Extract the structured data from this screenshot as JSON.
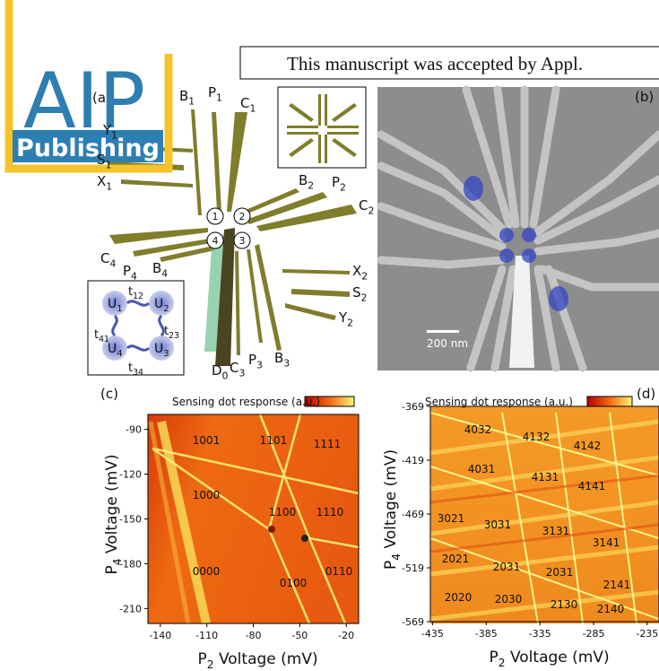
{
  "logo": {
    "name": "AIP",
    "sub": "Publishing"
  },
  "header": "This manuscript was accepted by Appl.",
  "panel_a": {
    "label": "(a)",
    "gates": [
      [
        "B",
        "1"
      ],
      [
        "P",
        "1"
      ],
      [
        "C",
        "1"
      ],
      [
        "Y",
        "1"
      ],
      [
        "S",
        "1"
      ],
      [
        "X",
        "1"
      ],
      [
        "B",
        "2"
      ],
      [
        "P",
        "2"
      ],
      [
        "C",
        "2"
      ],
      [
        "C",
        "4"
      ],
      [
        "P",
        "4"
      ],
      [
        "B",
        "4"
      ],
      [
        "X",
        "2"
      ],
      [
        "S",
        "2"
      ],
      [
        "Y",
        "2"
      ],
      [
        "D",
        "0"
      ],
      [
        "C",
        "3"
      ],
      [
        "P",
        "3"
      ],
      [
        "B",
        "3"
      ]
    ],
    "dots": [
      "1",
      "2",
      "3",
      "4"
    ],
    "qubits": [
      [
        "U",
        "1"
      ],
      [
        "U",
        "2"
      ],
      [
        "U",
        "3"
      ],
      [
        "U",
        "4"
      ]
    ],
    "couplings": [
      [
        "t",
        "12"
      ],
      [
        "t",
        "23"
      ],
      [
        "t",
        "34"
      ],
      [
        "t",
        "41"
      ]
    ]
  },
  "panel_b": {
    "label": "(b)",
    "scale_bar": "200 nm"
  },
  "panel_c": {
    "label": "(c)",
    "colorbar_label": "Sensing dot response (a.u.)",
    "x_label": [
      "P",
      "2",
      " Voltage (mV)"
    ],
    "y_label": [
      "P",
      "4",
      " Voltage (mV)"
    ],
    "xlim": [
      -148,
      -12
    ],
    "xticks": [
      -140,
      -110,
      -80,
      -50,
      -20
    ],
    "ylim": [
      -220,
      -80
    ],
    "yticks": [
      -90,
      -120,
      -150,
      -180,
      -210
    ],
    "charge_states": [
      "1001",
      "1101",
      "1111",
      "1000",
      "1100",
      "1110",
      "0000",
      "0100",
      "0110"
    ]
  },
  "panel_d": {
    "label": "(d)",
    "colorbar_label": "Sensing dot response (a.u.)",
    "x_label": [
      "P",
      "2",
      " Voltage (mV)"
    ],
    "y_label": [
      "P",
      "4",
      " Voltage (mV)"
    ],
    "xlim": [
      -437,
      -224
    ],
    "xticks": [
      -435,
      -385,
      -335,
      -285,
      -235
    ],
    "ylim": [
      -569,
      -369
    ],
    "yticks": [
      -369,
      -419,
      -469,
      -519,
      -569
    ],
    "charge_states": [
      "4032",
      "4132",
      "4142",
      "4031",
      "4131",
      "4141",
      "3021",
      "3031",
      "3131",
      "3141",
      "2021",
      "2031",
      "2031",
      "2141",
      "2020",
      "2030",
      "2130",
      "2140"
    ]
  }
}
